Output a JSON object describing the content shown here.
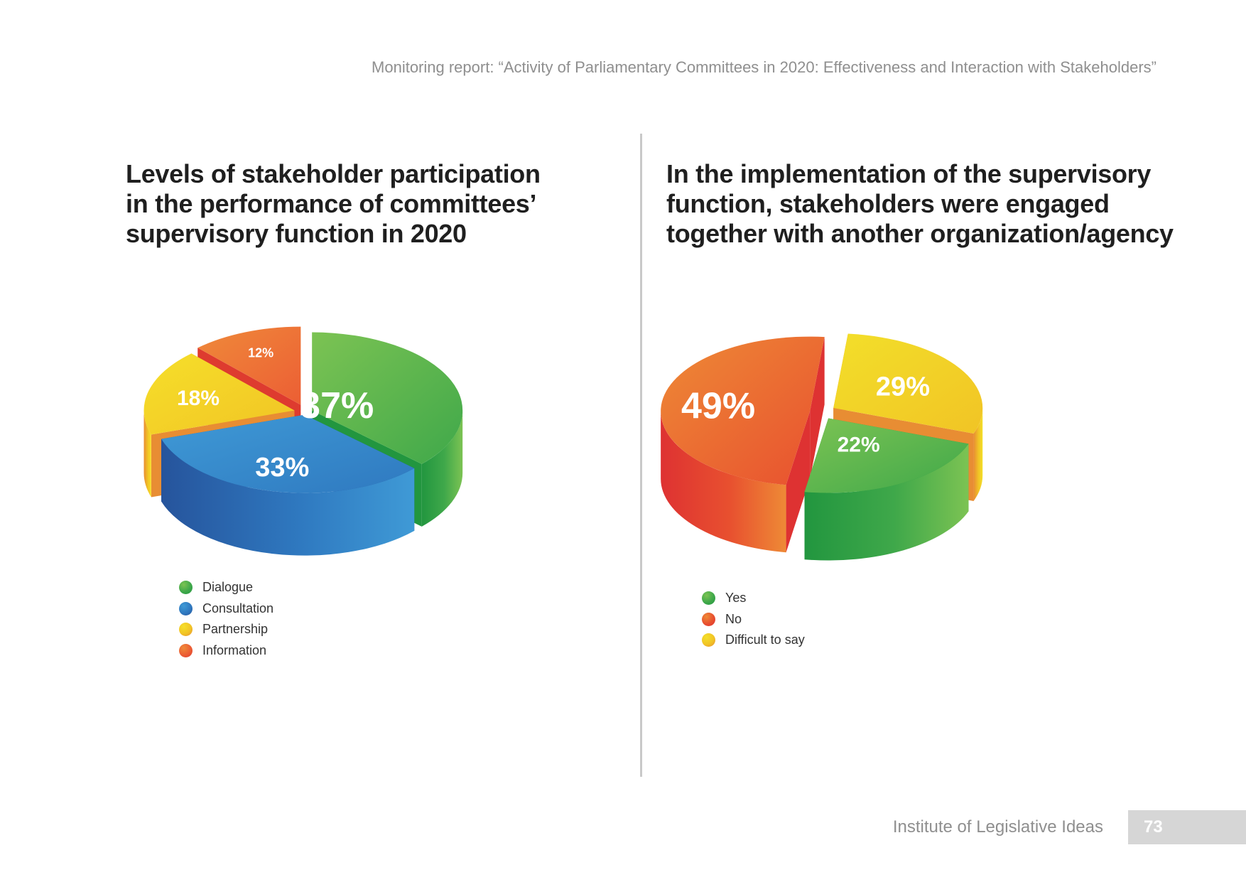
{
  "header": {
    "report_title": "Monitoring report: “Activity of Parliamentary Committees in 2020: Effectiveness and Interaction with Stakeholders”"
  },
  "footer": {
    "institute": "Institute of Legislative Ideas",
    "page_number": "73"
  },
  "chart_data": [
    {
      "type": "pie",
      "title_lines": [
        "Levels of stakeholder participation",
        "in the performance of committees’",
        "supervisory function in 2020"
      ],
      "legend_placement": "bottom-left",
      "slices": [
        {
          "name": "Dialogue",
          "value": 37,
          "label": "37%",
          "color": "#3fa84a",
          "color_light": "#7cc353",
          "color_dark": "#22963f"
        },
        {
          "name": "Consultation",
          "value": 33,
          "label": "33%",
          "color": "#2f79c0",
          "color_light": "#3f9ad6",
          "color_dark": "#26549c"
        },
        {
          "name": "Partnership",
          "value": 18,
          "label": "18%",
          "color": "#f1c425",
          "color_light": "#f6df2a",
          "color_dark": "#e88d33"
        },
        {
          "name": "Information",
          "value": 12,
          "label": "12%",
          "color": "#ec5e34",
          "color_light": "#ef8a3a",
          "color_dark": "#de3b2f"
        }
      ]
    },
    {
      "type": "pie",
      "title_lines": [
        "In the implementation of the supervisory",
        "function, stakeholders were engaged",
        "together with another organization/agency"
      ],
      "legend_placement": "bottom-left",
      "slices": [
        {
          "name": "Yes",
          "value": 22,
          "label": "22%",
          "color": "#3fa84a",
          "color_light": "#7cc353",
          "color_dark": "#22963f"
        },
        {
          "name": "No",
          "value": 49,
          "label": "49%",
          "color": "#e8502f",
          "color_light": "#ee8a36",
          "color_dark": "#de3232"
        },
        {
          "name": "Difficult to say",
          "value": 29,
          "label": "29%",
          "color": "#f1c425",
          "color_light": "#f3df2a",
          "color_dark": "#e88d33"
        }
      ]
    }
  ]
}
